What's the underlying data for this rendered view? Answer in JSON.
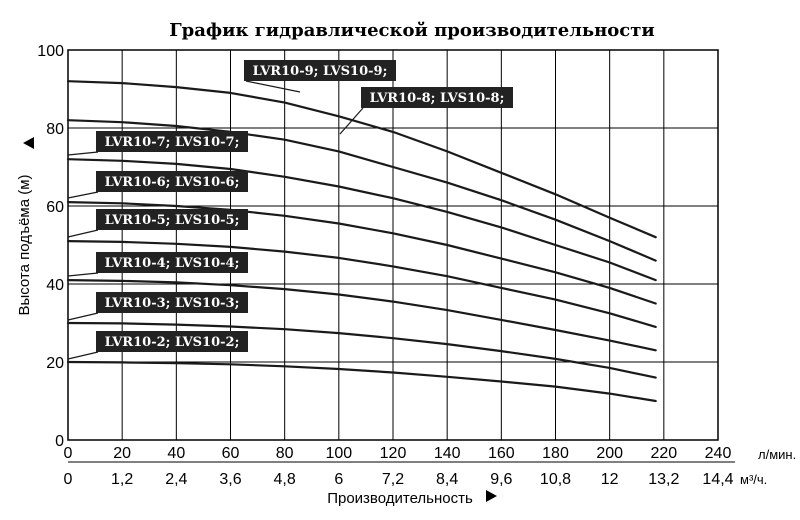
{
  "chart_data": {
    "type": "line",
    "title": "График гидравлической производительности",
    "xlabel": "Производительность",
    "ylabel": "Высота подъёма (м)",
    "x_unit_primary": "л/мин.",
    "x_unit_secondary": "м³/ч.",
    "xlim": [
      0,
      240
    ],
    "ylim": [
      0,
      100
    ],
    "x_ticks": [
      "0",
      "20",
      "40",
      "60",
      "80",
      "100",
      "120",
      "140",
      "160",
      "180",
      "200",
      "220",
      "240"
    ],
    "x_ticks_secondary": [
      "0",
      "1,2",
      "2,4",
      "3,6",
      "4,8",
      "6",
      "7,2",
      "8,4",
      "9,6",
      "10,8",
      "12",
      "13,2",
      "14,4"
    ],
    "y_ticks": [
      "0",
      "20",
      "40",
      "60",
      "80",
      "100"
    ],
    "grid": true,
    "x": [
      0,
      20,
      40,
      60,
      80,
      100,
      120,
      140,
      160,
      180,
      200,
      217
    ],
    "series": [
      {
        "name": "LVR10-9; LVS10-9;",
        "values": [
          92,
          91.5,
          90.5,
          89,
          86.5,
          83,
          79,
          74,
          68.5,
          63,
          57,
          52
        ]
      },
      {
        "name": "LVR10-8; LVS10-8;",
        "values": [
          82,
          81.5,
          80.5,
          79,
          77,
          74,
          70,
          66,
          61.5,
          56.5,
          51,
          46
        ]
      },
      {
        "name": "LVR10-7; LVS10-7;",
        "values": [
          72,
          71.6,
          70.8,
          69.5,
          67.5,
          65,
          62,
          58.5,
          54.5,
          50,
          45.5,
          41
        ]
      },
      {
        "name": "LVR10-6; LVS10-6;",
        "values": [
          61,
          60.7,
          60,
          59,
          57.5,
          55.5,
          53,
          50,
          46.5,
          43,
          39,
          35
        ]
      },
      {
        "name": "LVR10-5; LVS10-5;",
        "values": [
          51,
          50.8,
          50.3,
          49.5,
          48.3,
          46.7,
          44.5,
          42,
          39,
          36,
          32.5,
          29
        ]
      },
      {
        "name": "LVR10-4; LVS10-4;",
        "values": [
          41,
          40.8,
          40.4,
          39.7,
          38.7,
          37.3,
          35.5,
          33.3,
          30.8,
          28.2,
          25.5,
          23
        ]
      },
      {
        "name": "LVR10-3; LVS10-3;",
        "values": [
          30,
          29.9,
          29.6,
          29.1,
          28.4,
          27.4,
          26.1,
          24.6,
          22.8,
          20.8,
          18.5,
          16
        ]
      },
      {
        "name": "LVR10-2; LVS10-2;",
        "values": [
          20,
          19.9,
          19.7,
          19.4,
          18.9,
          18.2,
          17.3,
          16.2,
          15,
          13.7,
          11.9,
          10
        ]
      }
    ],
    "colors": {
      "line": "#1a1a1a",
      "grid": "#000000",
      "label_bg": "#222222",
      "label_text": "#ffffff"
    }
  }
}
